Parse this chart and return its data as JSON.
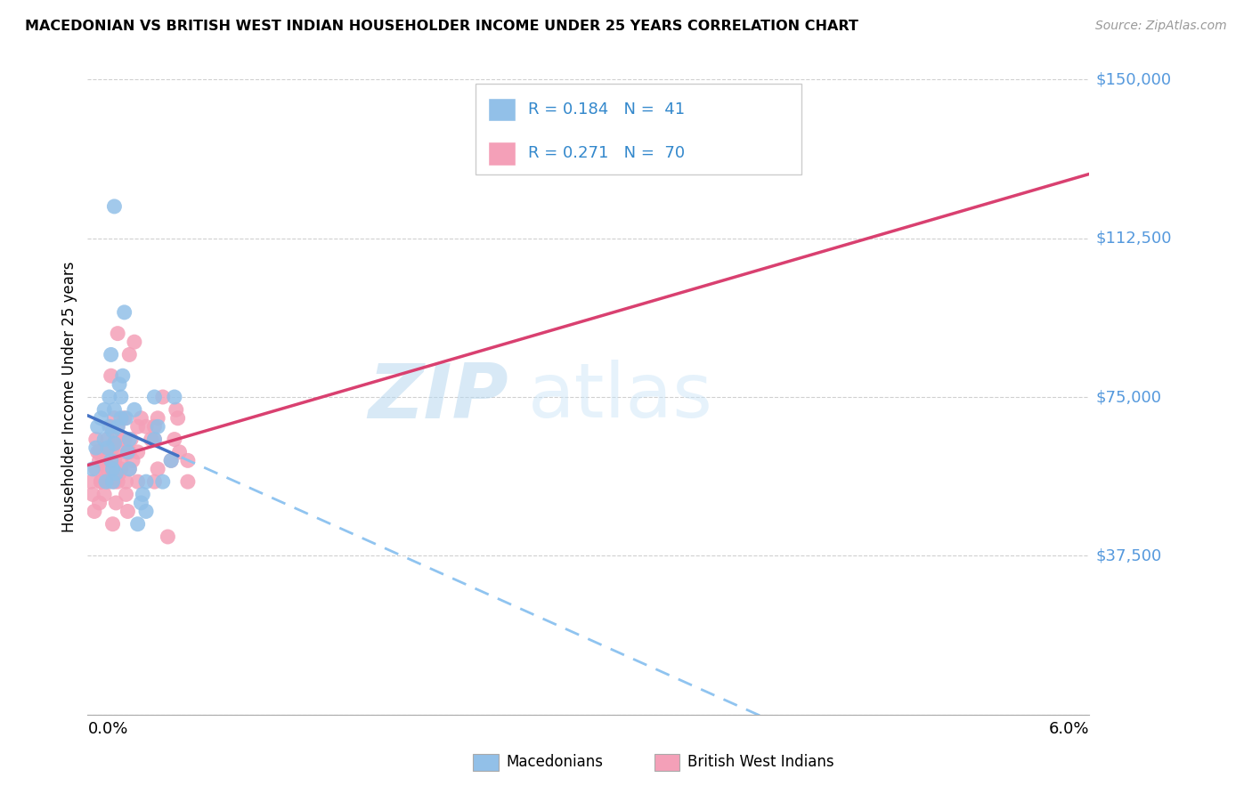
{
  "title": "MACEDONIAN VS BRITISH WEST INDIAN HOUSEHOLDER INCOME UNDER 25 YEARS CORRELATION CHART",
  "source": "Source: ZipAtlas.com",
  "ylabel": "Householder Income Under 25 years",
  "xlim": [
    0.0,
    0.06
  ],
  "ylim": [
    0,
    150000
  ],
  "yticks": [
    0,
    37500,
    75000,
    112500,
    150000
  ],
  "ytick_labels": [
    "",
    "$37,500",
    "$75,000",
    "$112,500",
    "$150,000"
  ],
  "blue_color": "#92c0e8",
  "pink_color": "#f4a0b8",
  "trend_blue": "#4472c4",
  "trend_pink": "#d94070",
  "trend_dashed_blue": "#90c4f0",
  "R_mac": 0.184,
  "N_mac": 41,
  "R_bwi": 0.271,
  "N_bwi": 70,
  "watermark_zip": "ZIP",
  "watermark_atlas": "atlas",
  "macedonian_x": [
    0.0003,
    0.0005,
    0.0006,
    0.0008,
    0.001,
    0.001,
    0.0011,
    0.0012,
    0.0013,
    0.0013,
    0.0014,
    0.0015,
    0.0015,
    0.0016,
    0.0016,
    0.0017,
    0.0018,
    0.0019,
    0.002,
    0.002,
    0.0021,
    0.0022,
    0.0024,
    0.0025,
    0.0025,
    0.0028,
    0.003,
    0.0032,
    0.0033,
    0.0035,
    0.0035,
    0.004,
    0.004,
    0.0042,
    0.0045,
    0.005,
    0.0052,
    0.0016,
    0.0014,
    0.0015,
    0.0023
  ],
  "macedonian_y": [
    58000,
    63000,
    68000,
    70000,
    65000,
    72000,
    55000,
    63000,
    75000,
    68000,
    60000,
    58000,
    67000,
    72000,
    64000,
    57000,
    68000,
    78000,
    75000,
    70000,
    80000,
    95000,
    62000,
    65000,
    58000,
    72000,
    45000,
    50000,
    52000,
    48000,
    55000,
    65000,
    75000,
    68000,
    55000,
    60000,
    75000,
    120000,
    85000,
    55000,
    70000
  ],
  "bwi_x": [
    0.0002,
    0.0003,
    0.0004,
    0.0005,
    0.0006,
    0.0007,
    0.0007,
    0.0008,
    0.0009,
    0.001,
    0.001,
    0.0011,
    0.0012,
    0.0012,
    0.0013,
    0.0013,
    0.0014,
    0.0015,
    0.0015,
    0.0016,
    0.0016,
    0.0017,
    0.0018,
    0.0018,
    0.0019,
    0.002,
    0.002,
    0.0021,
    0.0022,
    0.0023,
    0.0024,
    0.0025,
    0.0025,
    0.0026,
    0.0027,
    0.003,
    0.003,
    0.0032,
    0.0035,
    0.0038,
    0.004,
    0.0042,
    0.0045,
    0.005,
    0.0052,
    0.0054,
    0.0055,
    0.006,
    0.006,
    0.0022,
    0.0014,
    0.0016,
    0.0018,
    0.0048,
    0.0025,
    0.0015,
    0.003,
    0.0019,
    0.0023,
    0.0028,
    0.0042,
    0.004,
    0.0053,
    0.0024,
    0.0017,
    0.0008,
    0.0005,
    0.0007,
    0.004,
    0.0016
  ],
  "bwi_y": [
    55000,
    52000,
    48000,
    65000,
    62000,
    50000,
    60000,
    55000,
    60000,
    52000,
    62000,
    57000,
    65000,
    58000,
    55000,
    60000,
    68000,
    57000,
    63000,
    60000,
    58000,
    65000,
    68000,
    55000,
    62000,
    60000,
    58000,
    65000,
    70000,
    55000,
    48000,
    62000,
    58000,
    65000,
    60000,
    55000,
    62000,
    70000,
    68000,
    65000,
    55000,
    70000,
    75000,
    60000,
    65000,
    70000,
    62000,
    55000,
    60000,
    65000,
    80000,
    70000,
    90000,
    42000,
    85000,
    45000,
    68000,
    57000,
    52000,
    88000,
    58000,
    68000,
    72000,
    62000,
    50000,
    55000,
    58000,
    62000,
    65000,
    55000
  ]
}
